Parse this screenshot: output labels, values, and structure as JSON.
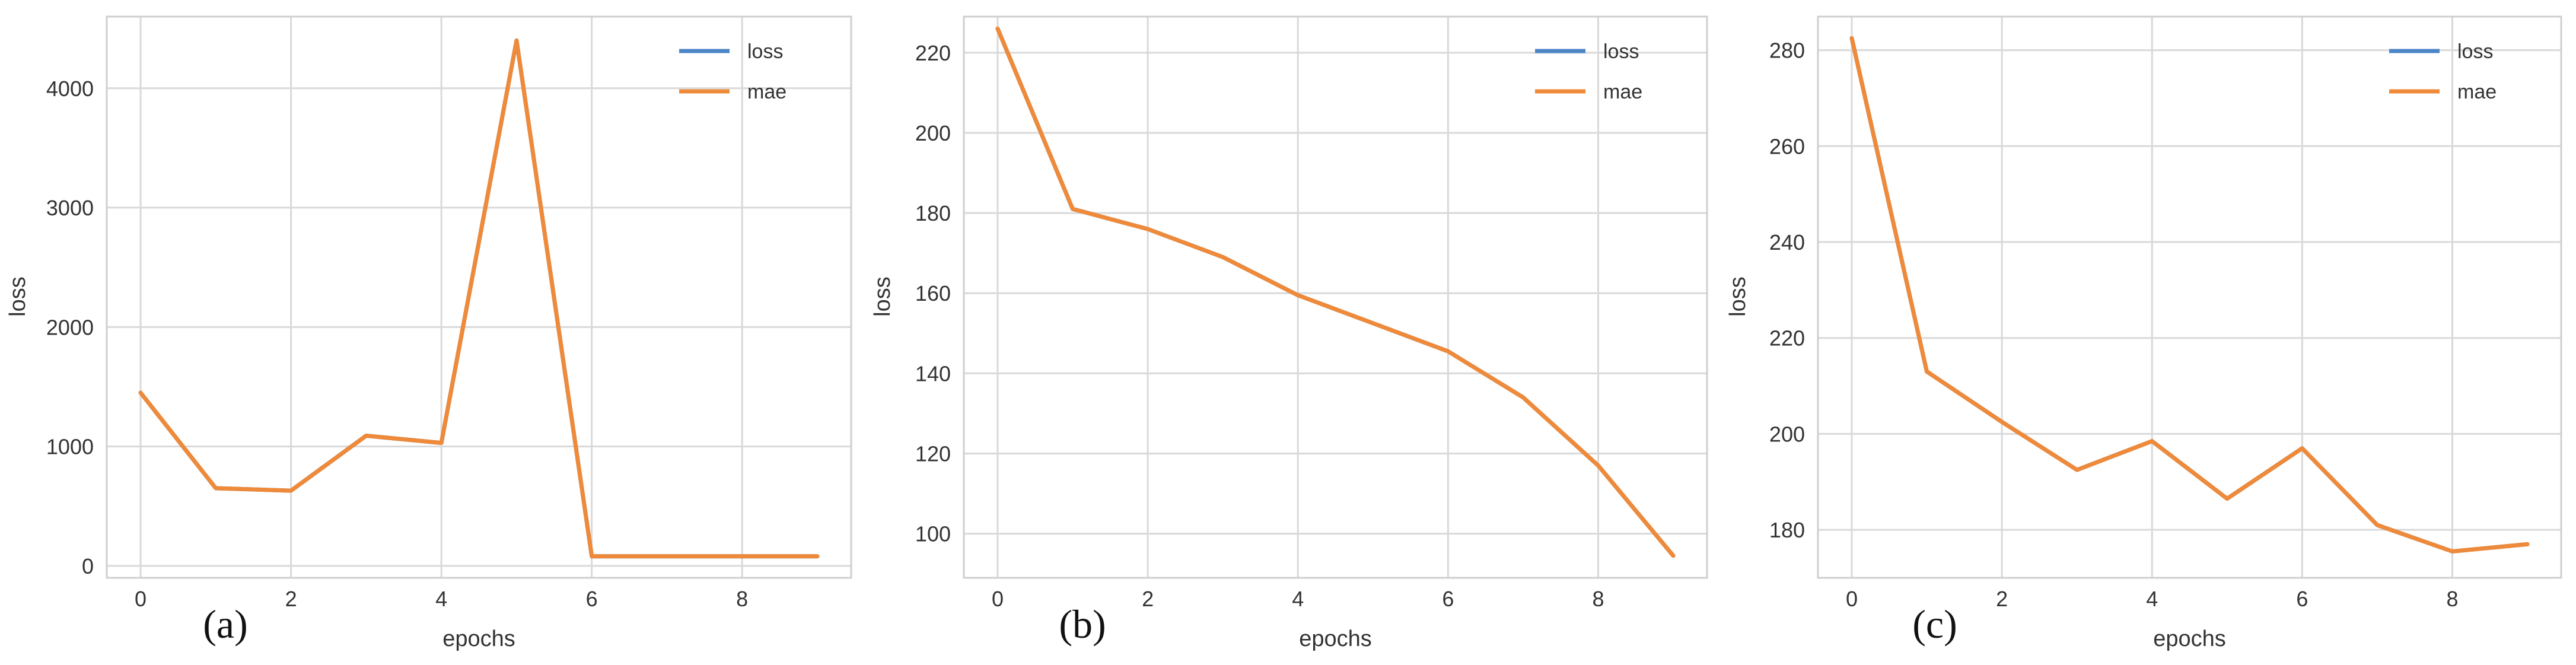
{
  "colors": {
    "loss": "#4c86c6",
    "mae": "#ee8a3a",
    "grid": "#d9d9d9",
    "frame": "#cfcfcf",
    "background": "#ffffff"
  },
  "chart_data": [
    {
      "type": "line",
      "panel_label": "(a)",
      "xlabel": "epochs",
      "ylabel": "loss",
      "x": [
        0,
        1,
        2,
        3,
        4,
        5,
        6,
        7,
        8,
        9
      ],
      "xlim": [
        -0.45,
        9.45
      ],
      "ylim": [
        -100,
        4600
      ],
      "xticks": [
        0,
        2,
        4,
        6,
        8
      ],
      "yticks": [
        0,
        1000,
        2000,
        3000,
        4000
      ],
      "grid": true,
      "legend_position": "top-right",
      "series": [
        {
          "name": "loss",
          "values": [
            1450,
            650,
            630,
            1090,
            1030,
            4400,
            80,
            80,
            80,
            80
          ]
        },
        {
          "name": "mae",
          "values": [
            1450,
            650,
            630,
            1090,
            1030,
            4400,
            80,
            80,
            80,
            80
          ]
        }
      ]
    },
    {
      "type": "line",
      "panel_label": "(b)",
      "xlabel": "epochs",
      "ylabel": "loss",
      "x": [
        0,
        1,
        2,
        3,
        4,
        5,
        6,
        7,
        8,
        9
      ],
      "xlim": [
        -0.45,
        9.45
      ],
      "ylim": [
        89,
        229
      ],
      "xticks": [
        0,
        2,
        4,
        6,
        8
      ],
      "yticks": [
        100,
        120,
        140,
        160,
        180,
        200,
        220
      ],
      "grid": true,
      "legend_position": "top-right",
      "series": [
        {
          "name": "loss",
          "values": [
            226,
            181,
            176,
            169,
            159.5,
            152.5,
            145.5,
            134,
            117,
            94.5
          ]
        },
        {
          "name": "mae",
          "values": [
            226,
            181,
            176,
            169,
            159.5,
            152.5,
            145.5,
            134,
            117,
            94.5
          ]
        }
      ]
    },
    {
      "type": "line",
      "panel_label": "(c)",
      "xlabel": "epochs",
      "ylabel": "loss",
      "x": [
        0,
        1,
        2,
        3,
        4,
        5,
        6,
        7,
        8,
        9
      ],
      "xlim": [
        -0.45,
        9.45
      ],
      "ylim": [
        170,
        287
      ],
      "xticks": [
        0,
        2,
        4,
        6,
        8
      ],
      "yticks": [
        180,
        200,
        220,
        240,
        260,
        280
      ],
      "grid": true,
      "legend_position": "top-right",
      "series": [
        {
          "name": "loss",
          "values": [
            282.5,
            213,
            202.5,
            192.5,
            198.5,
            186.5,
            197,
            181,
            175.5,
            177
          ]
        },
        {
          "name": "mae",
          "values": [
            282.5,
            213,
            202.5,
            192.5,
            198.5,
            186.5,
            197,
            181,
            175.5,
            177
          ]
        }
      ]
    }
  ]
}
